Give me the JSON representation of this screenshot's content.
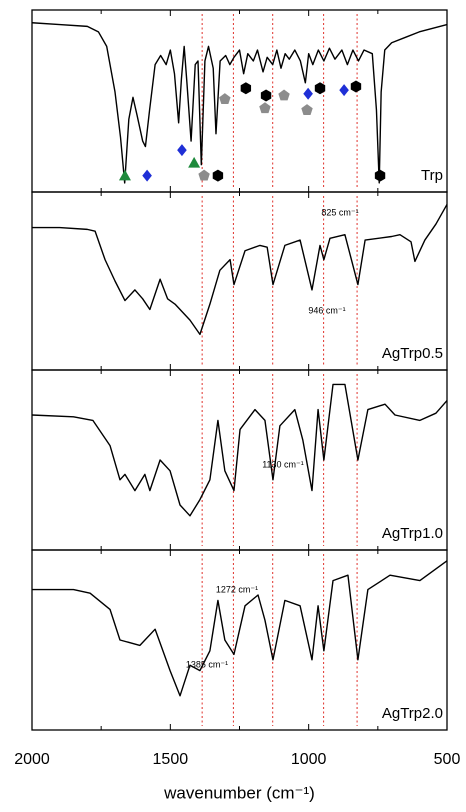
{
  "chart_data": [
    {
      "type": "line",
      "xlim": [
        2000,
        500
      ],
      "ylim": [
        0,
        100
      ],
      "xticks": [
        2000,
        1500,
        1000,
        500
      ],
      "minor_xticks": [
        1750,
        1250,
        750
      ],
      "vlines": [
        1385,
        1272,
        1130,
        946,
        825
      ],
      "vline_color": "#e0302a",
      "x": [
        2000,
        1900,
        1800,
        1760,
        1730,
        1700,
        1680,
        1665,
        1650,
        1635,
        1620,
        1600,
        1590,
        1575,
        1555,
        1535,
        1515,
        1500,
        1485,
        1470,
        1460,
        1450,
        1440,
        1425,
        1410,
        1400,
        1388,
        1375,
        1362,
        1345,
        1335,
        1320,
        1300,
        1285,
        1270,
        1250,
        1235,
        1220,
        1200,
        1185,
        1165,
        1150,
        1130,
        1115,
        1100,
        1085,
        1070,
        1050,
        1030,
        1012,
        1000,
        985,
        965,
        945,
        925,
        905,
        880,
        860,
        840,
        820,
        800,
        770,
        755,
        745,
        738,
        725,
        700,
        650,
        600,
        550,
        500
      ],
      "series": [
        {
          "name": "Trp",
          "color": "#000000",
          "values": [
            93,
            92,
            91,
            88,
            80,
            55,
            30,
            5,
            40,
            52,
            42,
            28,
            25,
            45,
            70,
            75,
            70,
            78,
            65,
            38,
            62,
            80,
            60,
            28,
            70,
            72,
            15,
            72,
            80,
            68,
            32,
            72,
            75,
            70,
            74,
            78,
            65,
            76,
            72,
            78,
            66,
            74,
            70,
            78,
            68,
            76,
            73,
            78,
            72,
            60,
            76,
            70,
            78,
            72,
            79,
            73,
            78,
            70,
            78,
            72,
            78,
            76,
            45,
            5,
            55,
            78,
            82,
            85,
            88,
            90,
            92
          ]
        }
      ],
      "markers": [
        {
          "shape": "triangle",
          "color": "#1e8a3c",
          "x": [
            1664,
            1414
          ],
          "values": [
            9,
            16
          ]
        },
        {
          "shape": "diamond",
          "color": "#1f2fd6",
          "x": [
            1584,
            1458,
            1002,
            872
          ],
          "values": [
            9,
            23,
            54,
            56
          ]
        },
        {
          "shape": "pentagon",
          "color": "#8c8c8c",
          "x": [
            1378,
            1303,
            1158,
            1089,
            1006
          ],
          "values": [
            9,
            51,
            46,
            53,
            45
          ]
        },
        {
          "shape": "hexagon",
          "color": "#000000",
          "x": [
            1328,
            1227,
            1154,
            959,
            829,
            742
          ],
          "values": [
            9,
            57,
            53,
            57,
            58,
            9
          ]
        }
      ],
      "annotations": []
    },
    {
      "type": "line",
      "xlim": [
        2000,
        500
      ],
      "ylim": [
        0,
        100
      ],
      "xticks": [
        2000,
        1500,
        1000,
        500
      ],
      "minor_xticks": [
        1750,
        1250,
        750
      ],
      "vlines": [
        1385,
        1272,
        1130,
        946,
        825
      ],
      "vline_color": "#e0302a",
      "x": [
        2000,
        1900,
        1800,
        1772,
        1736,
        1700,
        1664,
        1628,
        1600,
        1574,
        1537,
        1510,
        1483,
        1429,
        1393,
        1357,
        1321,
        1284,
        1270,
        1230,
        1176,
        1150,
        1129,
        1086,
        1031,
        988,
        959,
        945,
        923,
        869,
        822,
        796,
        700,
        670,
        630,
        616,
        580,
        540,
        500
      ],
      "series": [
        {
          "name": "AgTrp0.5",
          "color": "#000000",
          "values": [
            80,
            80,
            79,
            78,
            62,
            50,
            39,
            45,
            40,
            34,
            51,
            40,
            37,
            28,
            20,
            37,
            56,
            62,
            48,
            67,
            70,
            69,
            48,
            70,
            73,
            45,
            70,
            62,
            74,
            76,
            48,
            73,
            75,
            76,
            72,
            61,
            73,
            82,
            93
          ]
        }
      ],
      "annotations": [
        "825 cm⁻¹",
        "946 cm⁻¹"
      ]
    },
    {
      "type": "line",
      "xlim": [
        2000,
        500
      ],
      "ylim": [
        0,
        100
      ],
      "xticks": [
        2000,
        1500,
        1000,
        500
      ],
      "minor_xticks": [
        1750,
        1250,
        750
      ],
      "vlines": [
        1385,
        1272,
        1130,
        946,
        825
      ],
      "vline_color": "#e0302a",
      "x": [
        2000,
        1850,
        1780,
        1718,
        1682,
        1664,
        1628,
        1592,
        1574,
        1537,
        1501,
        1465,
        1429,
        1393,
        1357,
        1328,
        1303,
        1270,
        1248,
        1194,
        1158,
        1129,
        1104,
        1050,
        1021,
        988,
        966,
        945,
        912,
        869,
        822,
        786,
        724,
        688,
        598,
        540,
        500
      ],
      "series": [
        {
          "name": "AgTrp1.0",
          "color": "#000000",
          "values": [
            75,
            74,
            72,
            58,
            39,
            42,
            33,
            42,
            33,
            50,
            44,
            25,
            19,
            28,
            39,
            72,
            44,
            33,
            67,
            78,
            72,
            39,
            69,
            78,
            61,
            33,
            78,
            50,
            92,
            92,
            50,
            78,
            81,
            75,
            72,
            76,
            83
          ]
        }
      ],
      "annotations": [
        "1130 cm⁻¹"
      ]
    },
    {
      "type": "line",
      "xlim": [
        2000,
        500
      ],
      "ylim": [
        0,
        100
      ],
      "xticks": [
        2000,
        1500,
        1000,
        500
      ],
      "minor_xticks": [
        1750,
        1250,
        750
      ],
      "vlines": [
        1385,
        1272,
        1130,
        946,
        825
      ],
      "vline_color": "#e0302a",
      "xlabel": "wavenumber (cm⁻¹)",
      "x": [
        2000,
        1850,
        1790,
        1718,
        1682,
        1610,
        1555,
        1501,
        1465,
        1429,
        1393,
        1357,
        1328,
        1303,
        1270,
        1230,
        1183,
        1158,
        1129,
        1086,
        1031,
        988,
        966,
        945,
        912,
        858,
        822,
        786,
        706,
        598,
        500
      ],
      "series": [
        {
          "name": "AgTrp2.0",
          "color": "#000000",
          "values": [
            78,
            78,
            76,
            67,
            50,
            47,
            56,
            33,
            19,
            36,
            33,
            44,
            72,
            50,
            42,
            69,
            75,
            61,
            39,
            72,
            69,
            39,
            69,
            44,
            83,
            86,
            39,
            78,
            86,
            83,
            94
          ]
        }
      ],
      "annotations": [
        "1272 cm⁻¹",
        "1385 cm⁻¹"
      ]
    }
  ]
}
